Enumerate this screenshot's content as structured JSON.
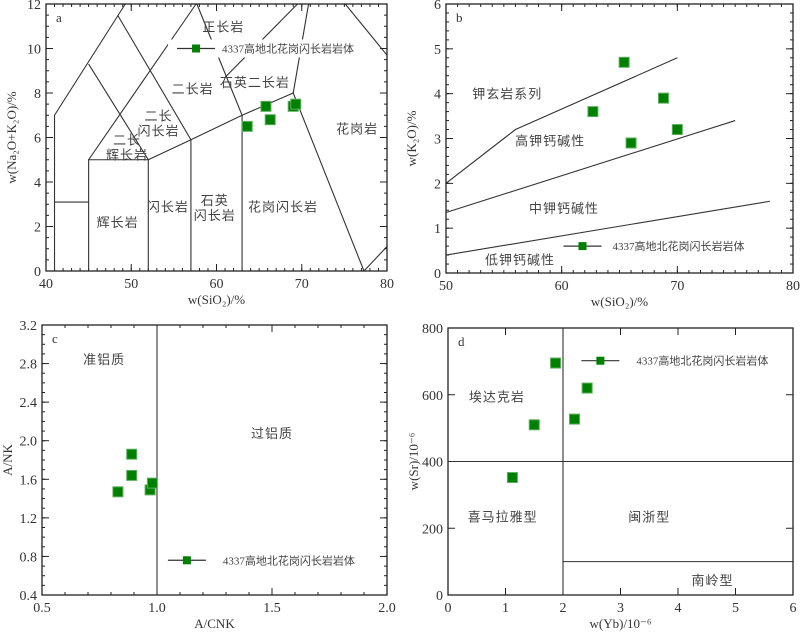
{
  "colors": {
    "marker": "#008000",
    "marker_edge": "#5fae5f",
    "line": "#333333"
  },
  "chart_data": [
    {
      "type": "scatter",
      "panel": "a",
      "xlabel": "w(SiO₂)/%",
      "ylabel": "w(Na₂O+K₂O)/%",
      "xlim": [
        40,
        80
      ],
      "ylim": [
        0,
        12
      ],
      "xticks": [
        40,
        50,
        60,
        70,
        80
      ],
      "yticks": [
        0,
        2,
        4,
        6,
        8,
        10,
        12
      ],
      "xminor": 1,
      "yminor": 0.5,
      "series": [
        {
          "name": "4337高地北花岗闪长岩岩体",
          "x": [
            63.6,
            65.8,
            66.3,
            69.0,
            69.3
          ],
          "y": [
            6.5,
            7.4,
            6.8,
            7.4,
            7.5
          ]
        }
      ],
      "legend": {
        "label": "4337高地北花岗闪长岩岩体",
        "x": 57.6,
        "y": 10.0
      },
      "boundaries": [
        [
          [
            41,
            0
          ],
          [
            41,
            7
          ],
          [
            49.3,
            12
          ]
        ],
        [
          [
            41,
            3.1
          ],
          [
            45,
            3.1
          ]
        ],
        [
          [
            45,
            0
          ],
          [
            45,
            5
          ],
          [
            52,
            5
          ],
          [
            52,
            0
          ]
        ],
        [
          [
            45,
            5
          ],
          [
            57.6,
            12
          ]
        ],
        [
          [
            45,
            9.3
          ],
          [
            52,
            5
          ]
        ],
        [
          [
            48.4,
            11.5
          ],
          [
            57,
            5.9
          ]
        ],
        [
          [
            52,
            5
          ],
          [
            57,
            5.9
          ],
          [
            63,
            7
          ],
          [
            69,
            8
          ],
          [
            77.3,
            0
          ]
        ],
        [
          [
            57,
            0
          ],
          [
            57,
            5.9
          ]
        ],
        [
          [
            63,
            0
          ],
          [
            63,
            7
          ],
          [
            57.7,
            12
          ]
        ],
        [
          [
            61,
            8.7
          ],
          [
            69.5,
            12
          ]
        ],
        [
          [
            69,
            8
          ],
          [
            70.8,
            12
          ]
        ],
        [
          [
            75.1,
            12
          ],
          [
            80,
            9.7
          ]
        ],
        [
          [
            77.3,
            0
          ],
          [
            80,
            1.1
          ]
        ]
      ],
      "regions": [
        {
          "text": "正长岩",
          "x": 60.8,
          "y": 11.0
        },
        {
          "text": "二长岩",
          "x": 57.2,
          "y": 8.2
        },
        {
          "text": "石英二长岩",
          "x": 64.5,
          "y": 8.5
        },
        {
          "text": "二长\n闪长岩",
          "x": 53.2,
          "y": 7.0
        },
        {
          "text": "二长\n辉长岩",
          "x": 49.5,
          "y": 5.9
        },
        {
          "text": "花岗岩",
          "x": 76.5,
          "y": 6.4
        },
        {
          "text": "辉长岩",
          "x": 48.4,
          "y": 2.2
        },
        {
          "text": "闪长岩",
          "x": 54.3,
          "y": 2.9
        },
        {
          "text": "石英\n闪长岩",
          "x": 59.8,
          "y": 3.2
        },
        {
          "text": "花岗闪长岩",
          "x": 67.8,
          "y": 2.9
        }
      ]
    },
    {
      "type": "scatter",
      "panel": "b",
      "xlabel": "w(SiO₂)/%",
      "ylabel": "w(K₂O)/%",
      "xlim": [
        50,
        80
      ],
      "ylim": [
        0,
        6
      ],
      "xticks": [
        50,
        60,
        70,
        80
      ],
      "yticks": [
        0,
        1,
        2,
        3,
        4,
        5,
        6
      ],
      "xminor": 1,
      "yminor": 0.2,
      "series": [
        {
          "name": "4337高地北花岗闪长岩岩体",
          "x": [
            65.4,
            62.7,
            68.8,
            70.0,
            66.0
          ],
          "y": [
            4.7,
            3.6,
            3.9,
            3.2,
            2.9
          ]
        }
      ],
      "legend": {
        "label": "4337高地北花岗闪长岩岩体",
        "x": 61.8,
        "y": 0.6
      },
      "boundaries": [
        [
          [
            50,
            2.0
          ],
          [
            56,
            3.2
          ],
          [
            70,
            4.8
          ]
        ],
        [
          [
            50,
            1.35
          ],
          [
            75,
            3.4
          ]
        ],
        [
          [
            50,
            0.4
          ],
          [
            78,
            1.6
          ]
        ]
      ],
      "regions": [
        {
          "text": "钾玄岩系列",
          "x": 55.3,
          "y": 4.0
        },
        {
          "text": "高钾钙碱性",
          "x": 59.0,
          "y": 2.95
        },
        {
          "text": "中钾钙碱性",
          "x": 60.2,
          "y": 1.45
        },
        {
          "text": "低钾钙碱性",
          "x": 56.4,
          "y": 0.3
        }
      ]
    },
    {
      "type": "scatter",
      "panel": "c",
      "xlabel": "A/CNK",
      "ylabel": "A/NK",
      "xlim": [
        0.5,
        2.0
      ],
      "ylim": [
        0.4,
        3.2
      ],
      "xticks": [
        0.5,
        1.0,
        1.5,
        2.0
      ],
      "yticks": [
        0.4,
        0.8,
        1.2,
        1.6,
        2.0,
        2.4,
        2.8,
        3.2
      ],
      "xtick_format": 1,
      "ytick_format": 1,
      "xminor": 0.1,
      "yminor": 0.1,
      "series": [
        {
          "name": "4337高地北花岗闪长岩岩体",
          "x": [
            0.83,
            0.89,
            0.89,
            0.97,
            0.98
          ],
          "y": [
            1.47,
            1.86,
            1.64,
            1.49,
            1.56
          ]
        }
      ],
      "legend": {
        "label": "4337高地北花岗闪长岩岩体",
        "x": 1.13,
        "y": 0.76
      },
      "boundaries": [
        [
          [
            1.0,
            0.4
          ],
          [
            1.0,
            3.2
          ]
        ]
      ],
      "regions": [
        {
          "text": "准铝质",
          "x": 0.77,
          "y": 2.85
        },
        {
          "text": "过铝质",
          "x": 1.5,
          "y": 2.08
        }
      ]
    },
    {
      "type": "scatter",
      "panel": "d",
      "xlabel": "w(Yb)/10⁻⁶",
      "ylabel": "w(Sr)/10⁻⁶",
      "xlim": [
        0,
        6
      ],
      "ylim": [
        0,
        800
      ],
      "xticks": [
        0,
        1,
        2,
        3,
        4,
        5,
        6
      ],
      "yticks": [
        0,
        200,
        400,
        600,
        800
      ],
      "xminor": 0,
      "yminor": 0,
      "series": [
        {
          "name": "4337高地北花岗闪长岩岩体",
          "x": [
            1.87,
            1.5,
            2.2,
            2.42,
            1.12
          ],
          "y": [
            695,
            510,
            527,
            620,
            352
          ]
        }
      ],
      "legend": {
        "label": "4337高地北花岗闪长岩岩体",
        "x": 2.65,
        "y": 702
      },
      "boundaries": [
        [
          [
            0,
            400
          ],
          [
            6,
            400
          ]
        ],
        [
          [
            2,
            0
          ],
          [
            2,
            800
          ]
        ],
        [
          [
            2,
            100
          ],
          [
            6,
            100
          ]
        ]
      ],
      "regions": [
        {
          "text": "埃达克岩",
          "x": 0.85,
          "y": 595
        },
        {
          "text": "喜马拉雅型",
          "x": 0.95,
          "y": 235
        },
        {
          "text": "闽浙型",
          "x": 3.5,
          "y": 235
        },
        {
          "text": "南岭型",
          "x": 4.6,
          "y": 45
        }
      ]
    }
  ]
}
